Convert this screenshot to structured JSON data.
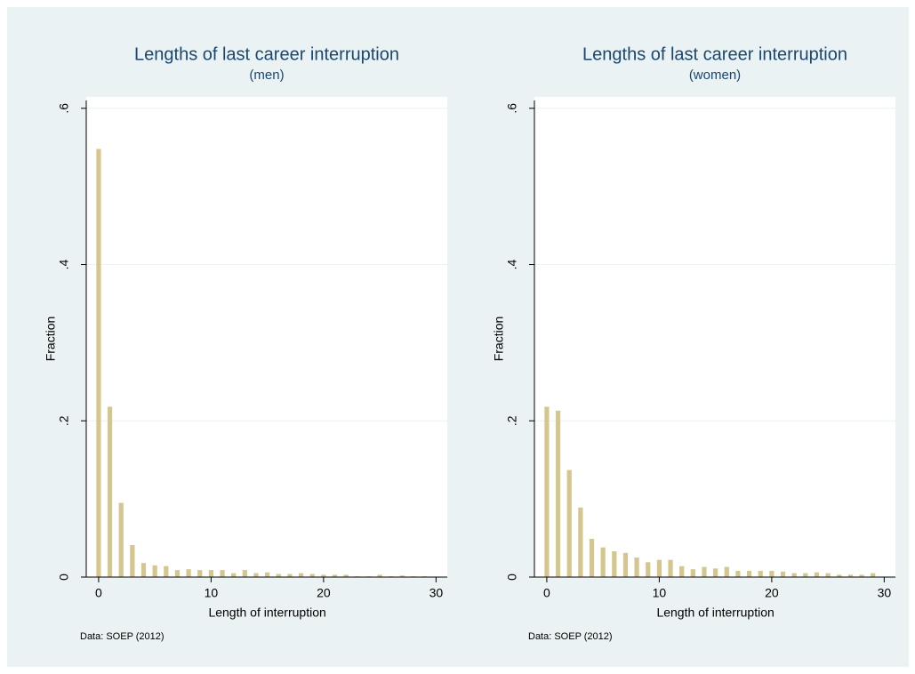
{
  "chart_data": [
    {
      "type": "bar",
      "title": "Lengths of last career interruption",
      "subtitle": "(men)",
      "xlabel": "Length of interruption",
      "ylabel": "Fraction",
      "note": "Data: SOEP (2012)",
      "color": "#d4c68e",
      "grid": true,
      "x": [
        0,
        1,
        2,
        3,
        4,
        5,
        6,
        7,
        8,
        9,
        10,
        11,
        12,
        13,
        14,
        15,
        16,
        17,
        18,
        19,
        20,
        21,
        22,
        23,
        24,
        25,
        26,
        27,
        28,
        29
      ],
      "values": [
        0.548,
        0.218,
        0.095,
        0.041,
        0.018,
        0.015,
        0.014,
        0.009,
        0.01,
        0.009,
        0.009,
        0.009,
        0.005,
        0.009,
        0.005,
        0.006,
        0.004,
        0.004,
        0.005,
        0.004,
        0.003,
        0.003,
        0.003,
        0.001,
        0.001,
        0.003,
        0.001,
        0.002,
        0.001,
        0.001
      ],
      "xlim": [
        -1.1,
        31
      ],
      "xticks": [
        0,
        10,
        20,
        30
      ],
      "ylim": [
        0,
        0.61
      ],
      "yticks": [
        0,
        {
          "value": 0.2,
          "label": ".2"
        },
        {
          "value": 0.4,
          "label": ".4"
        },
        {
          "value": 0.6,
          "label": ".6"
        }
      ]
    },
    {
      "type": "bar",
      "title": "Lengths of last career interruption",
      "subtitle": "(women)",
      "xlabel": "Length of interruption",
      "ylabel": "Fraction",
      "note": "Data: SOEP (2012)",
      "color": "#d4c68e",
      "grid": true,
      "x": [
        0,
        1,
        2,
        3,
        4,
        5,
        6,
        7,
        8,
        9,
        10,
        11,
        12,
        13,
        14,
        15,
        16,
        17,
        18,
        19,
        20,
        21,
        22,
        23,
        24,
        25,
        26,
        27,
        28,
        29
      ],
      "values": [
        0.218,
        0.213,
        0.137,
        0.089,
        0.049,
        0.038,
        0.033,
        0.031,
        0.025,
        0.019,
        0.022,
        0.022,
        0.014,
        0.01,
        0.013,
        0.011,
        0.013,
        0.008,
        0.008,
        0.008,
        0.008,
        0.007,
        0.005,
        0.005,
        0.006,
        0.005,
        0.003,
        0.003,
        0.003,
        0.005
      ],
      "xlim": [
        -1.1,
        31
      ],
      "xticks": [
        0,
        10,
        20,
        30
      ],
      "ylim": [
        0,
        0.61
      ],
      "yticks": [
        0,
        {
          "value": 0.2,
          "label": ".2"
        },
        {
          "value": 0.4,
          "label": ".4"
        },
        {
          "value": 0.6,
          "label": ".6"
        }
      ]
    }
  ]
}
